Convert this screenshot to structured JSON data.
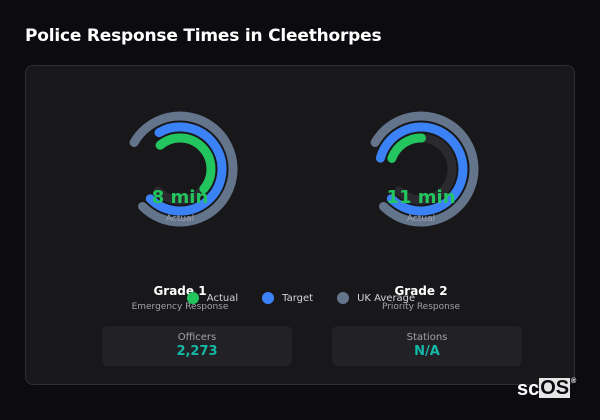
{
  "title": "Police Response Times in Cleethorpes",
  "colors": {
    "actual": "#22c55e",
    "target": "#3b82f6",
    "uk_average": "#64748b",
    "track": "#2a2a2e",
    "stat_value": "#14b8a6"
  },
  "gauges": [
    {
      "name": "Grade 1",
      "description": "Emergency Response",
      "value": "8 min",
      "value_label": "Actual",
      "actual_fill": 0.64,
      "target_fill": 1.0,
      "uk_average_fill": 1.0
    },
    {
      "name": "Grade 2",
      "description": "Priority Response",
      "value": "11 min",
      "value_label": "Actual",
      "actual_fill": 0.24,
      "target_fill": 1.0,
      "uk_average_fill": 1.0
    }
  ],
  "legend": [
    {
      "label": "Actual",
      "color": "#22c55e"
    },
    {
      "label": "Target",
      "color": "#3b82f6"
    },
    {
      "label": "UK Average",
      "color": "#64748b"
    }
  ],
  "stats": [
    {
      "label": "Officers",
      "value": "2,273"
    },
    {
      "label": "Stations",
      "value": "N/A"
    }
  ],
  "logo": {
    "text_a": "sc",
    "text_b": "OS",
    "mark": "®"
  }
}
